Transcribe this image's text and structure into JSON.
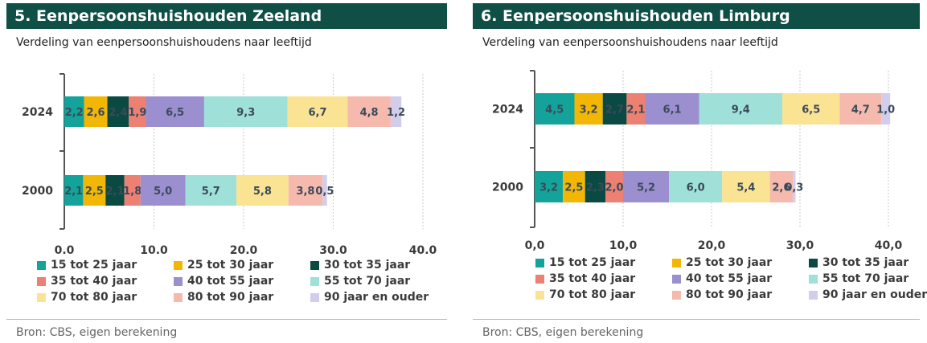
{
  "colors": {
    "header_bg": "#0f4f45",
    "series": [
      "#14a39a",
      "#f2b705",
      "#0b4a42",
      "#ec8072",
      "#9b8fd0",
      "#9fe0d8",
      "#fae493",
      "#f6b9ad",
      "#d3cdec"
    ]
  },
  "chart_data": [
    {
      "type": "bar",
      "orientation": "horizontal",
      "stacked": true,
      "title": "5. Eenpersoonshuishouden Zeeland",
      "subtitle": "Verdeling van eenpersoonshuishoudens naar leeftijd",
      "categories": [
        "2024",
        "2000"
      ],
      "xlim": [
        0,
        40
      ],
      "xticks": [
        "0.0",
        "10.0",
        "20.0",
        "30.0",
        "40.0"
      ],
      "grid": true,
      "legend_position": "bottom",
      "series": [
        {
          "name": "15 tot 25 jaar",
          "values": [
            2.2,
            2.1
          ],
          "labels": [
            "2,2",
            "2,1"
          ]
        },
        {
          "name": "25 tot 30 jaar",
          "values": [
            2.6,
            2.5
          ],
          "labels": [
            "2,6",
            "2,5"
          ]
        },
        {
          "name": "30 tot 35 jaar",
          "values": [
            2.4,
            2.1
          ],
          "labels": [
            "2,4",
            "2,1"
          ]
        },
        {
          "name": "35 tot 40 jaar",
          "values": [
            1.9,
            1.8
          ],
          "labels": [
            "1,9",
            "1,8"
          ]
        },
        {
          "name": "40 tot 55 jaar",
          "values": [
            6.5,
            5.0
          ],
          "labels": [
            "6,5",
            "5,0"
          ]
        },
        {
          "name": "55 tot 70 jaar",
          "values": [
            9.3,
            5.7
          ],
          "labels": [
            "9,3",
            "5,7"
          ]
        },
        {
          "name": "70 tot 80 jaar",
          "values": [
            6.7,
            5.8
          ],
          "labels": [
            "6,7",
            "5,8"
          ]
        },
        {
          "name": "80 tot 90 jaar",
          "values": [
            4.8,
            3.8
          ],
          "labels": [
            "4,8",
            "3,8"
          ]
        },
        {
          "name": "90 jaar en ouder",
          "values": [
            1.2,
            0.5
          ],
          "labels": [
            "1,2",
            "0,5"
          ]
        }
      ],
      "source": "Bron: CBS, eigen berekening"
    },
    {
      "type": "bar",
      "orientation": "horizontal",
      "stacked": true,
      "title": "6. Eenpersoonshuishouden Limburg",
      "subtitle": "Verdeling van eenpersoonshuishoudens naar leeftijd",
      "categories": [
        "2024",
        "2000"
      ],
      "xlim": [
        0,
        40
      ],
      "xticks": [
        "0,0",
        "10,0",
        "20,0",
        "30,0",
        "40,0"
      ],
      "grid": true,
      "legend_position": "bottom",
      "series": [
        {
          "name": "15 tot 25 jaar",
          "values": [
            4.5,
            3.2
          ],
          "labels": [
            "4,5",
            "3,2"
          ]
        },
        {
          "name": "25 tot 30 jaar",
          "values": [
            3.2,
            2.5
          ],
          "labels": [
            "3,2",
            "2,5"
          ]
        },
        {
          "name": "30 tot 35 jaar",
          "values": [
            2.7,
            2.3
          ],
          "labels": [
            "2,7",
            "2,3"
          ]
        },
        {
          "name": "35 tot 40 jaar",
          "values": [
            2.1,
            2.0
          ],
          "labels": [
            "2,1",
            "2,0"
          ]
        },
        {
          "name": "40 tot 55 jaar",
          "values": [
            6.1,
            5.2
          ],
          "labels": [
            "6,1",
            "5,2"
          ]
        },
        {
          "name": "55 tot 70 jaar",
          "values": [
            9.4,
            6.0
          ],
          "labels": [
            "9,4",
            "6,0"
          ]
        },
        {
          "name": "70 tot 80 jaar",
          "values": [
            6.5,
            5.4
          ],
          "labels": [
            "6,5",
            "5,4"
          ]
        },
        {
          "name": "80 tot 90 jaar",
          "values": [
            4.7,
            2.6
          ],
          "labels": [
            "4,7",
            "2,6"
          ]
        },
        {
          "name": "90 jaar en ouder",
          "values": [
            1.0,
            0.3
          ],
          "labels": [
            "1,0",
            "0,3"
          ]
        }
      ],
      "source": "Bron: CBS, eigen berekening"
    }
  ]
}
